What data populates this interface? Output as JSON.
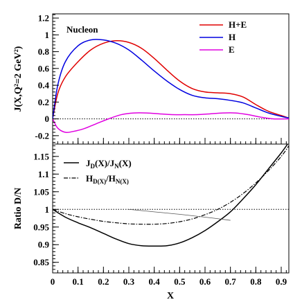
{
  "chart_data": [
    {
      "type": "line",
      "annotation": "Nucleon",
      "ylabel": "J(X,Q²=2 GeV²)",
      "xlim": [
        0,
        0.93
      ],
      "ylim": [
        -0.3,
        1.25
      ],
      "reference_line": {
        "y": 0,
        "style": "dotted"
      },
      "y_ticks": [
        -0.2,
        0,
        0.2,
        0.4,
        0.6,
        0.8,
        1,
        1.2
      ],
      "y_tick_labels": [
        "-0.2",
        "0",
        "0.2",
        "0.4",
        "0.6",
        "0.8",
        "1",
        "1.2"
      ],
      "legend_position": "top-right",
      "series": [
        {
          "name": "H+E",
          "color": "#e00000",
          "x": [
            0,
            0.02,
            0.05,
            0.1,
            0.15,
            0.2,
            0.25,
            0.3,
            0.35,
            0.4,
            0.45,
            0.5,
            0.55,
            0.6,
            0.65,
            0.7,
            0.75,
            0.8,
            0.85,
            0.9,
            0.93
          ],
          "y": [
            0,
            0.3,
            0.5,
            0.68,
            0.82,
            0.9,
            0.93,
            0.91,
            0.84,
            0.72,
            0.58,
            0.45,
            0.36,
            0.32,
            0.31,
            0.3,
            0.26,
            0.17,
            0.09,
            0.04,
            0.01
          ]
        },
        {
          "name": "H",
          "color": "#0000e0",
          "x": [
            0,
            0.02,
            0.05,
            0.1,
            0.15,
            0.2,
            0.25,
            0.3,
            0.35,
            0.4,
            0.45,
            0.5,
            0.55,
            0.6,
            0.65,
            0.7,
            0.75,
            0.8,
            0.85,
            0.9,
            0.93
          ],
          "y": [
            0,
            0.4,
            0.68,
            0.87,
            0.94,
            0.94,
            0.9,
            0.82,
            0.7,
            0.57,
            0.45,
            0.35,
            0.28,
            0.25,
            0.24,
            0.22,
            0.19,
            0.13,
            0.07,
            0.03,
            0.01
          ]
        },
        {
          "name": "E",
          "color": "#e000e0",
          "x": [
            0,
            0.02,
            0.05,
            0.08,
            0.12,
            0.17,
            0.22,
            0.27,
            0.32,
            0.37,
            0.42,
            0.47,
            0.52,
            0.57,
            0.62,
            0.67,
            0.72,
            0.77,
            0.82,
            0.87,
            0.93
          ],
          "y": [
            0,
            -0.11,
            -0.16,
            -0.15,
            -0.12,
            -0.06,
            0.0,
            0.05,
            0.07,
            0.07,
            0.06,
            0.05,
            0.05,
            0.05,
            0.06,
            0.07,
            0.07,
            0.05,
            0.02,
            0.0,
            0.0
          ]
        }
      ]
    },
    {
      "type": "line",
      "xlabel": "X",
      "ylabel": "Ratio D/N",
      "xlim": [
        0,
        0.93
      ],
      "ylim": [
        0.82,
        1.185
      ],
      "reference_line": {
        "y": 1,
        "style": "dotted"
      },
      "x_ticks": [
        0,
        0.1,
        0.2,
        0.3,
        0.4,
        0.5,
        0.6,
        0.7,
        0.8,
        0.9
      ],
      "x_tick_labels": [
        "0",
        "0.1",
        "0.2",
        "0.3",
        "0.4",
        "0.5",
        "0.6",
        "0.7",
        "0.8",
        "0.9"
      ],
      "y_ticks": [
        0.85,
        0.9,
        0.95,
        1,
        1.05,
        1.1,
        1.15
      ],
      "y_tick_labels": [
        "0.85",
        "0.9",
        "0.95",
        "1",
        "1.05",
        "1.1",
        "1.15"
      ],
      "legend_position": "top-left",
      "legend_labels": {
        "J": {
          "main": "J",
          "sub1": "D",
          "mid": "(X)/J",
          "sub2": "N",
          "end": "(X)"
        },
        "H": {
          "main": "H",
          "sub1": "D(X)",
          "mid": "/H",
          "sub2": "N(X)",
          "end": ""
        }
      },
      "series": [
        {
          "id": "J",
          "name": "J_D(X)/J_N(X)",
          "color": "#000000",
          "style": "solid",
          "x": [
            0,
            0.05,
            0.1,
            0.15,
            0.2,
            0.25,
            0.3,
            0.35,
            0.4,
            0.45,
            0.5,
            0.55,
            0.6,
            0.65,
            0.7,
            0.75,
            0.8,
            0.85,
            0.9,
            0.93
          ],
          "y": [
            1.0,
            0.978,
            0.962,
            0.948,
            0.932,
            0.916,
            0.903,
            0.897,
            0.896,
            0.897,
            0.905,
            0.92,
            0.94,
            0.965,
            0.993,
            1.03,
            1.07,
            1.115,
            1.16,
            1.19
          ]
        },
        {
          "id": "H",
          "name": "H_D(X)/H_N(X)",
          "color": "#000000",
          "style": "dashdot",
          "x": [
            0,
            0.05,
            0.1,
            0.15,
            0.2,
            0.25,
            0.3,
            0.35,
            0.4,
            0.45,
            0.5,
            0.55,
            0.6,
            0.65,
            0.7,
            0.75,
            0.8,
            0.85,
            0.9,
            0.93
          ],
          "y": [
            1.0,
            0.988,
            0.979,
            0.972,
            0.966,
            0.962,
            0.959,
            0.958,
            0.958,
            0.96,
            0.965,
            0.973,
            0.985,
            1.0,
            1.02,
            1.045,
            1.075,
            1.11,
            1.15,
            1.18
          ]
        },
        {
          "id": "thin",
          "name": "",
          "color": "#555555",
          "style": "thin",
          "x": [
            0.3,
            0.4,
            0.5,
            0.6,
            0.7
          ],
          "y": [
            1.0,
            0.993,
            0.986,
            0.978,
            0.969
          ]
        }
      ]
    }
  ]
}
